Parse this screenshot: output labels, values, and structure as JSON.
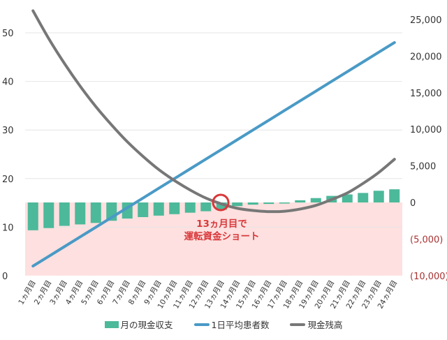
{
  "chart_data": {
    "type": "bar+line combo",
    "title": "",
    "categories": [
      "1ヵ月目",
      "2ヵ月目",
      "3ヵ月目",
      "4ヵ月目",
      "5ヵ月目",
      "6ヵ月目",
      "7ヵ月目",
      "8ヵ月目",
      "9ヵ月目",
      "10ヵ月目",
      "11ヵ月目",
      "12ヵ月目",
      "13ヵ月目",
      "14ヵ月目",
      "15ヵ月目",
      "16ヵ月目",
      "17ヵ月目",
      "18ヵ月目",
      "19ヵ月目",
      "20ヵ月目",
      "21ヵ月目",
      "22ヵ月目",
      "23ヵ月目",
      "24ヵ月目"
    ],
    "series": [
      {
        "name": "月の現金収支",
        "type": "bar",
        "axis": "right",
        "color": "#4cb99a",
        "values": [
          -3800,
          -3500,
          -3200,
          -3000,
          -2800,
          -2500,
          -2200,
          -2000,
          -1800,
          -1600,
          -1400,
          -1200,
          -1000,
          -500,
          -300,
          -200,
          -100,
          300,
          600,
          900,
          1100,
          1300,
          1600,
          1800
        ]
      },
      {
        "name": "1日平均患者数",
        "type": "line",
        "axis": "left",
        "color": "#4a9ac6",
        "values": [
          2,
          4,
          6,
          8,
          10,
          12,
          14,
          16,
          18,
          20,
          22,
          24,
          26,
          28,
          30,
          32,
          34,
          36,
          38,
          40,
          42,
          44,
          46,
          48
        ]
      },
      {
        "name": "現金残高",
        "type": "line",
        "axis": "right",
        "color": "#777777",
        "values": [
          26200,
          22400,
          19000,
          15900,
          13100,
          10600,
          8300,
          6300,
          4500,
          3000,
          1700,
          600,
          -200,
          -800,
          -1100,
          -1250,
          -1200,
          -900,
          -400,
          400,
          1300,
          2600,
          4100,
          5900
        ]
      }
    ],
    "left_axis": {
      "ticks": [
        "0",
        "10",
        "20",
        "30",
        "40",
        "50"
      ],
      "ylim": [
        0,
        50
      ]
    },
    "right_axis": {
      "ticks": [
        "25,000",
        "20,000",
        "15,000",
        "10,000",
        "5,000",
        "0",
        "(5,000)",
        "(10,000)"
      ],
      "ylim": [
        -10000,
        25000
      ],
      "negative_color": "#a93232"
    },
    "negative_region_color": "#fde0df",
    "grid": true,
    "legend": {
      "position": "bottom",
      "entries": [
        "月の現金収支",
        "1日平均患者数",
        "現金残高"
      ]
    },
    "annotation": {
      "lines": [
        "13ヵ月目で",
        "運転資金ショート"
      ],
      "marker_category": "13ヵ月目",
      "color": "#d9383a"
    }
  },
  "legend": {
    "items": [
      {
        "label": "月の現金収支"
      },
      {
        "label": "1日平均患者数"
      },
      {
        "label": "現金残高"
      }
    ]
  },
  "annotation": {
    "line1": "13ヵ月目で",
    "line2": "運転資金ショート"
  }
}
